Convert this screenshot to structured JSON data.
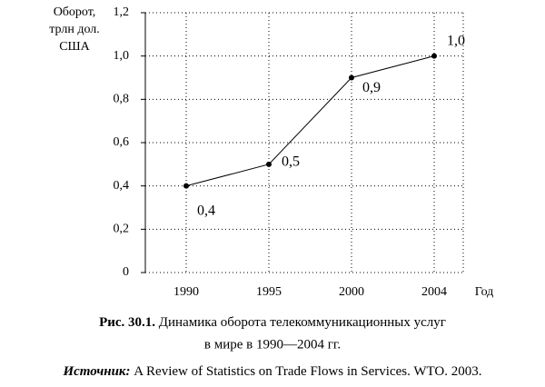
{
  "chart_data": {
    "type": "line",
    "y_label": [
      "Оборот,",
      "трлн дол.",
      "США"
    ],
    "x_label": "Год",
    "categories": [
      "1990",
      "1995",
      "2000",
      "2004"
    ],
    "values": [
      0.4,
      0.5,
      0.9,
      1.0
    ],
    "value_labels": [
      "0,4",
      "0,5",
      "0,9",
      "1,0"
    ],
    "color": "#000000",
    "ylim": [
      0,
      1.2
    ],
    "yticks": [
      0,
      {
        "value": 0.2,
        "label": "0,2"
      },
      {
        "value": 0.4,
        "label": "0,4"
      },
      {
        "value": 0.6,
        "label": "0,6"
      },
      {
        "value": 0.8,
        "label": "0,8"
      },
      {
        "value": 1.0,
        "label": "1,0"
      },
      {
        "value": 1.2,
        "label": "1,2"
      }
    ],
    "grid": true
  },
  "caption": {
    "label": "Рис. 30.1.",
    "lines": [
      "Динамика оборота телекоммуникационных услуг",
      "в мире в 1990—2004 гг."
    ]
  },
  "source": {
    "label": "Источник:",
    "text": "A Review of Statistics on Trade Flows in Services. WTO. 2003."
  }
}
